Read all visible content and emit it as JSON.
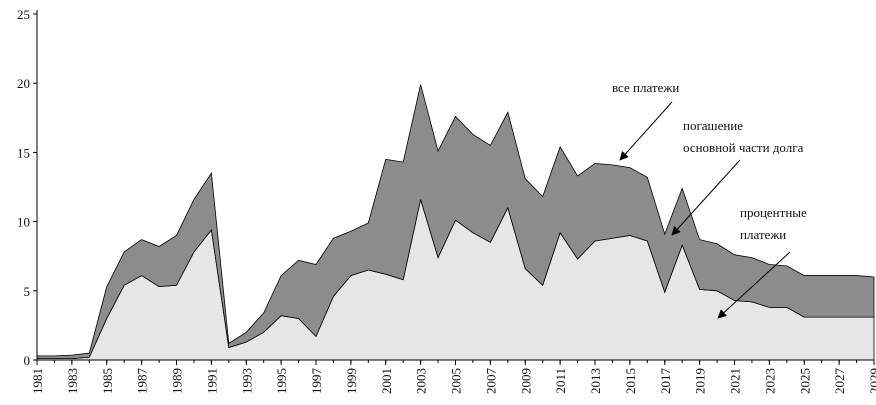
{
  "chart_data": {
    "type": "stacked_area",
    "x": [
      1981,
      1982,
      1983,
      1984,
      1985,
      1986,
      1987,
      1988,
      1989,
      1990,
      1991,
      1992,
      1993,
      1994,
      1995,
      1996,
      1997,
      1998,
      1999,
      2000,
      2001,
      2002,
      2003,
      2004,
      2005,
      2006,
      2007,
      2008,
      2009,
      2010,
      2011,
      2012,
      2013,
      2014,
      2015,
      2016,
      2017,
      2018,
      2019,
      2020,
      2021,
      2022,
      2023,
      2024,
      2025,
      2026,
      2027,
      2028,
      2029
    ],
    "series": [
      {
        "label": [
          "процентные",
          "платежи"
        ],
        "color": "#e6e6e6",
        "values": [
          0.1,
          0.1,
          0.1,
          0.2,
          3.0,
          5.4,
          6.1,
          5.3,
          5.4,
          7.8,
          9.4,
          0.9,
          1.3,
          2.0,
          3.2,
          3.0,
          1.7,
          4.6,
          6.1,
          6.5,
          6.2,
          5.8,
          11.6,
          7.4,
          10.1,
          9.2,
          8.5,
          11.0,
          6.6,
          5.4,
          9.2,
          7.3,
          8.6,
          8.8,
          9.0,
          8.6,
          4.9,
          8.3,
          5.1,
          5.0,
          4.3,
          4.2,
          3.8,
          3.8,
          3.1,
          3.1,
          3.1,
          3.1,
          3.1
        ]
      },
      {
        "label": [
          "погашение",
          "основной части долга"
        ],
        "color": "#8c8c8c",
        "values": [
          0.2,
          0.2,
          0.25,
          0.3,
          2.3,
          2.4,
          2.6,
          2.9,
          3.6,
          3.8,
          4.1,
          0.3,
          0.7,
          1.4,
          2.9,
          4.2,
          5.2,
          4.2,
          3.2,
          3.4,
          8.3,
          8.5,
          8.3,
          7.7,
          7.5,
          7.1,
          7.0,
          6.9,
          6.5,
          6.4,
          6.2,
          6.0,
          5.6,
          5.3,
          4.9,
          4.6,
          4.2,
          4.1,
          3.6,
          3.4,
          3.3,
          3.2,
          3.1,
          3.0,
          3.0,
          3.0,
          3.0,
          3.0,
          2.9
        ]
      }
    ],
    "total_label": [
      "все платежи"
    ],
    "xlim": [
      1981,
      2029
    ],
    "xticks": [
      1981,
      1983,
      1985,
      1987,
      1989,
      1991,
      1993,
      1995,
      1997,
      1999,
      2001,
      2003,
      2005,
      2007,
      2009,
      2011,
      2013,
      2015,
      2017,
      2019,
      2021,
      2023,
      2025,
      2027,
      2029
    ],
    "ylim": [
      0,
      25
    ],
    "yticks": [
      0,
      5,
      10,
      15,
      20,
      25
    ]
  }
}
